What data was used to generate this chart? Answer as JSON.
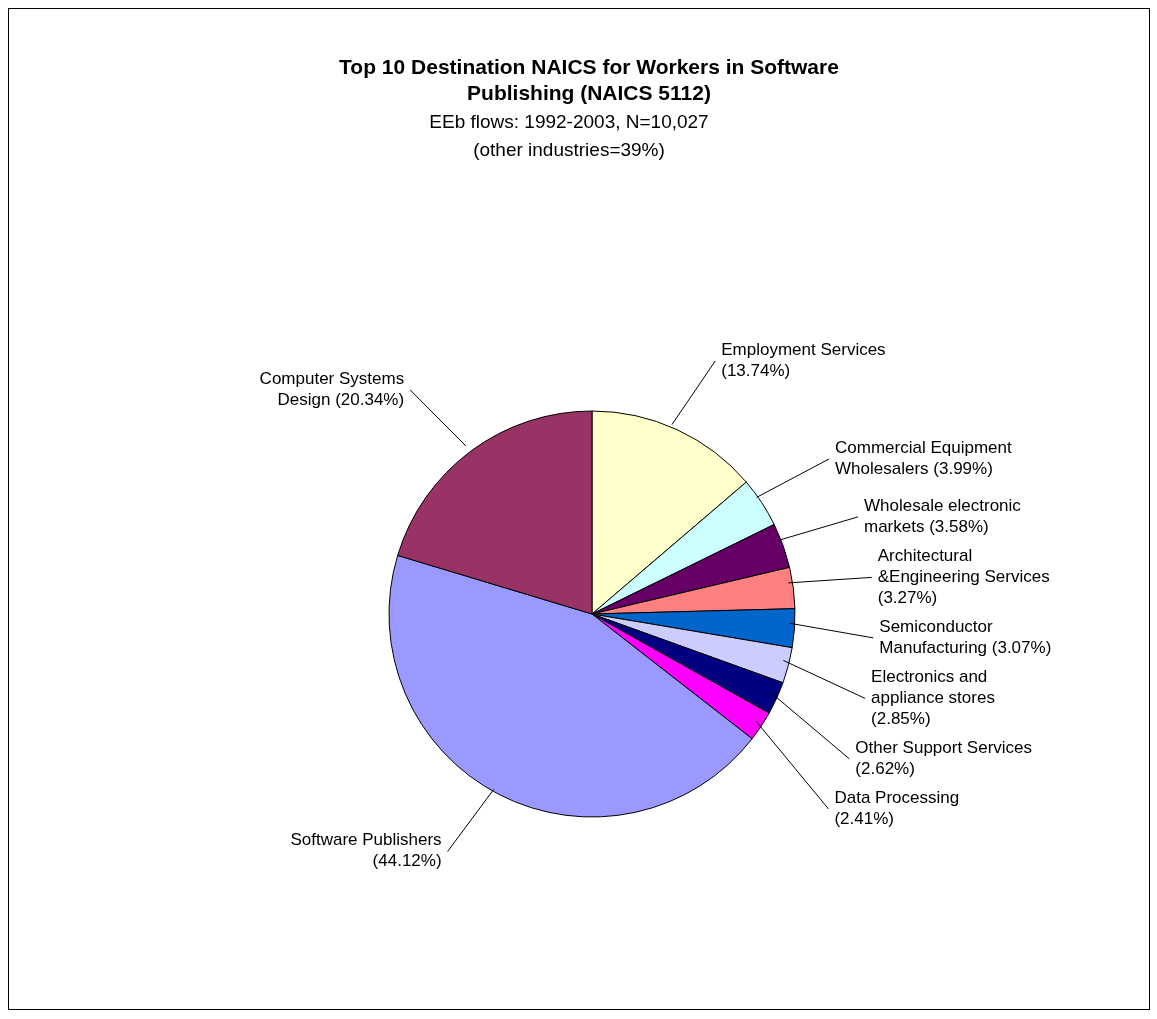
{
  "chart_data": {
    "type": "pie",
    "title": "Top 10 Destination NAICS for Workers in Software Publishing (NAICS 5112)",
    "subtitle": "EEb flows: 1992-2003, N=10,027",
    "annotations": [
      "(other industries=39%)"
    ],
    "categories": [
      "Employment Services",
      "Commercial Equipment Wholesalers",
      "Wholesale electronic markets",
      "Architectural &Engineering Services",
      "Semiconductor Manufacturing",
      "Electronics and appliance stores",
      "Other Support Services",
      "Data Processing",
      "Software Publishers",
      "Computer Systems Design"
    ],
    "values": [
      13.74,
      3.99,
      3.58,
      3.27,
      3.07,
      2.85,
      2.62,
      2.41,
      44.12,
      20.34
    ],
    "value_labels": [
      "(13.74%)",
      "(3.99%)",
      "(3.58%)",
      "(3.27%)",
      "(3.07%)",
      "(2.85%)",
      "(2.62%)",
      "(2.41%)",
      "(44.12%)",
      "(20.34%)"
    ],
    "colors": [
      "#ffffcc",
      "#ccffff",
      "#660066",
      "#ff8080",
      "#0066cc",
      "#ccccff",
      "#000080",
      "#ff00ff",
      "#9999ff",
      "#993366"
    ]
  }
}
